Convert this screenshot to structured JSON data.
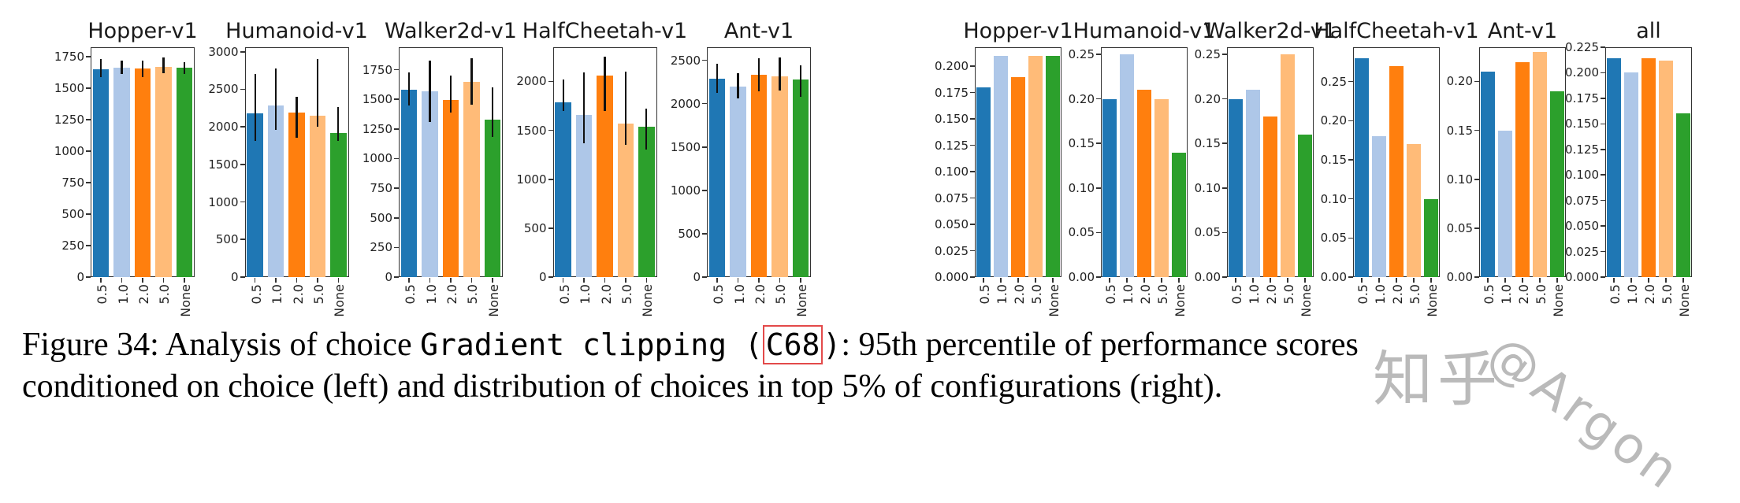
{
  "figure": {
    "caption": {
      "line1_prefix": "Figure 34: Analysis of choice ",
      "code_text": "Gradient clipping (",
      "boxed_code": "C68",
      "code_close": ")",
      "line1_suffix": ": 95th percentile of performance scores",
      "line2": "conditioned on choice (left) and distribution of choices in top 5% of configurations (right)."
    },
    "watermark": {
      "cjk": "知乎",
      "handle": "@Argon"
    }
  },
  "palette": [
    "#1f77b4",
    "#aec7e8",
    "#ff7f0e",
    "#ffbb78",
    "#2ca02c"
  ],
  "chart_data": [
    {
      "type": "bar",
      "group": "left",
      "title": "Hopper-v1",
      "categories": [
        "0.5",
        "1.0",
        "2.0",
        "5.0",
        "None"
      ],
      "values": [
        1650,
        1660,
        1655,
        1670,
        1665
      ],
      "errors_low": [
        1585,
        1610,
        1590,
        1620,
        1615
      ],
      "errors_high": [
        1730,
        1720,
        1720,
        1745,
        1705
      ],
      "ytick_values": [
        0,
        250,
        500,
        750,
        1000,
        1250,
        1500,
        1750
      ],
      "ytick_labels": [
        "0",
        "250",
        "500",
        "750",
        "1000",
        "1250",
        "1500",
        "1750"
      ],
      "xlabel": "",
      "ylabel": "",
      "ylim": [
        0,
        1825
      ]
    },
    {
      "type": "bar",
      "group": "left",
      "title": "Humanoid-v1",
      "categories": [
        "0.5",
        "1.0",
        "2.0",
        "5.0",
        "None"
      ],
      "values": [
        2180,
        2280,
        2190,
        2150,
        1920
      ],
      "errors_low": [
        1810,
        1960,
        1850,
        2000,
        1810
      ],
      "errors_high": [
        2700,
        2780,
        2400,
        2900,
        2260
      ],
      "ytick_values": [
        0,
        500,
        1000,
        1500,
        2000,
        2500,
        3000
      ],
      "ytick_labels": [
        "0",
        "500",
        "1000",
        "1500",
        "2000",
        "2500",
        "3000"
      ],
      "xlabel": "",
      "ylabel": "",
      "ylim": [
        0,
        3060
      ]
    },
    {
      "type": "bar",
      "group": "left",
      "title": "Walker2d-v1",
      "categories": [
        "0.5",
        "1.0",
        "2.0",
        "5.0",
        "None"
      ],
      "values": [
        1580,
        1570,
        1495,
        1650,
        1330
      ],
      "errors_low": [
        1450,
        1310,
        1390,
        1455,
        1180
      ],
      "errors_high": [
        1730,
        1830,
        1700,
        1850,
        1600
      ],
      "ytick_values": [
        0,
        250,
        500,
        750,
        1000,
        1250,
        1500,
        1750
      ],
      "ytick_labels": [
        "0",
        "250",
        "500",
        "750",
        "1000",
        "1250",
        "1500",
        "1750"
      ],
      "xlabel": "",
      "ylabel": "",
      "ylim": [
        0,
        1940
      ]
    },
    {
      "type": "bar",
      "group": "left",
      "title": "HalfCheetah-v1",
      "categories": [
        "0.5",
        "1.0",
        "2.0",
        "5.0",
        "None"
      ],
      "values": [
        1790,
        1660,
        2060,
        1570,
        1540
      ],
      "errors_low": [
        1700,
        1370,
        1700,
        1350,
        1300
      ],
      "errors_high": [
        2020,
        2090,
        2250,
        2100,
        1720
      ],
      "ytick_values": [
        0,
        500,
        1000,
        1500,
        2000
      ],
      "ytick_labels": [
        "0",
        "500",
        "1000",
        "1500",
        "2000"
      ],
      "xlabel": "",
      "ylabel": "",
      "ylim": [
        0,
        2350
      ]
    },
    {
      "type": "bar",
      "group": "left",
      "title": "Ant-v1",
      "categories": [
        "0.5",
        "1.0",
        "2.0",
        "5.0",
        "None"
      ],
      "values": [
        2290,
        2200,
        2330,
        2310,
        2280
      ],
      "errors_low": [
        2120,
        2060,
        2140,
        2150,
        2080
      ],
      "errors_high": [
        2460,
        2350,
        2520,
        2530,
        2440
      ],
      "ytick_values": [
        0,
        500,
        1000,
        1500,
        2000,
        2500
      ],
      "ytick_labels": [
        "0",
        "500",
        "1000",
        "1500",
        "2000",
        "2500"
      ],
      "xlabel": "",
      "ylabel": "",
      "ylim": [
        0,
        2650
      ]
    },
    {
      "type": "bar",
      "group": "right",
      "title": "Hopper-v1",
      "categories": [
        "0.5",
        "1.0",
        "2.0",
        "5.0",
        "None"
      ],
      "values": [
        0.18,
        0.21,
        0.19,
        0.21,
        0.21
      ],
      "ytick_values": [
        0.0,
        0.025,
        0.05,
        0.075,
        0.1,
        0.125,
        0.15,
        0.175,
        0.2
      ],
      "ytick_labels": [
        "0.000",
        "0.025",
        "0.050",
        "0.075",
        "0.100",
        "0.125",
        "0.150",
        "0.175",
        "0.200"
      ],
      "xlabel": "",
      "ylabel": "",
      "ylim": [
        0,
        0.218
      ]
    },
    {
      "type": "bar",
      "group": "right",
      "title": "Humanoid-v1",
      "categories": [
        "0.5",
        "1.0",
        "2.0",
        "5.0",
        "None"
      ],
      "values": [
        0.2,
        0.25,
        0.21,
        0.2,
        0.14
      ],
      "ytick_values": [
        0.0,
        0.05,
        0.1,
        0.15,
        0.2,
        0.25
      ],
      "ytick_labels": [
        "0.00",
        "0.05",
        "0.10",
        "0.15",
        "0.20",
        "0.25"
      ],
      "xlabel": "",
      "ylabel": "",
      "ylim": [
        0,
        0.258
      ]
    },
    {
      "type": "bar",
      "group": "right",
      "title": "Walker2d-v1",
      "categories": [
        "0.5",
        "1.0",
        "2.0",
        "5.0",
        "None"
      ],
      "values": [
        0.2,
        0.21,
        0.18,
        0.25,
        0.16
      ],
      "ytick_values": [
        0.0,
        0.05,
        0.1,
        0.15,
        0.2,
        0.25
      ],
      "ytick_labels": [
        "0.00",
        "0.05",
        "0.10",
        "0.15",
        "0.20",
        "0.25"
      ],
      "xlabel": "",
      "ylabel": "",
      "ylim": [
        0,
        0.258
      ]
    },
    {
      "type": "bar",
      "group": "right",
      "title": "HalfCheetah-v1",
      "categories": [
        "0.5",
        "1.0",
        "2.0",
        "5.0",
        "None"
      ],
      "values": [
        0.28,
        0.18,
        0.27,
        0.17,
        0.1
      ],
      "ytick_values": [
        0.0,
        0.05,
        0.1,
        0.15,
        0.2,
        0.25
      ],
      "ytick_labels": [
        "0.00",
        "0.05",
        "0.10",
        "0.15",
        "0.20",
        "0.25"
      ],
      "xlabel": "",
      "ylabel": "",
      "ylim": [
        0,
        0.294
      ]
    },
    {
      "type": "bar",
      "group": "right",
      "title": "Ant-v1",
      "categories": [
        "0.5",
        "1.0",
        "2.0",
        "5.0",
        "None"
      ],
      "values": [
        0.21,
        0.15,
        0.22,
        0.23,
        0.19
      ],
      "ytick_values": [
        0.0,
        0.05,
        0.1,
        0.15,
        0.2
      ],
      "ytick_labels": [
        "0.00",
        "0.05",
        "0.10",
        "0.15",
        "0.20"
      ],
      "xlabel": "",
      "ylabel": "",
      "ylim": [
        0,
        0.235
      ]
    },
    {
      "type": "bar",
      "group": "right",
      "title": "all",
      "categories": [
        "0.5",
        "1.0",
        "2.0",
        "5.0",
        "None"
      ],
      "values": [
        0.214,
        0.2,
        0.214,
        0.212,
        0.16
      ],
      "ytick_values": [
        0.0,
        0.025,
        0.05,
        0.075,
        0.1,
        0.125,
        0.15,
        0.175,
        0.2,
        0.225
      ],
      "ytick_labels": [
        "0.000",
        "0.025",
        "0.050",
        "0.075",
        "0.100",
        "0.125",
        "0.150",
        "0.175",
        "0.200",
        "0.225"
      ],
      "xlabel": "",
      "ylabel": "",
      "ylim": [
        0,
        0.225
      ]
    }
  ]
}
